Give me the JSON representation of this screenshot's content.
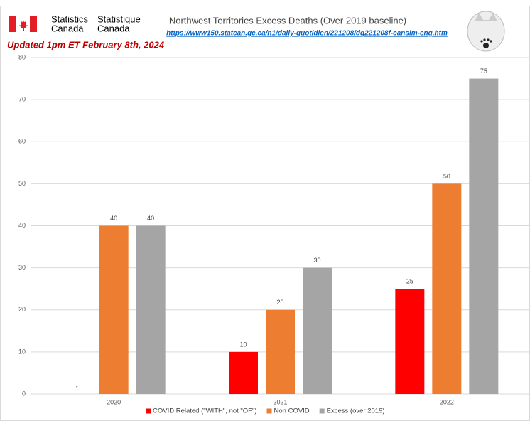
{
  "header": {
    "agency_en": [
      "Statistics",
      "Canada"
    ],
    "agency_fr": [
      "Statistique",
      "Canada"
    ]
  },
  "chart_data": {
    "type": "bar",
    "title": "Northwest Territories Excess Deaths (Over 2019 baseline)",
    "subtitle": "https://www150.statcan.gc.ca/n1/daily-quotidien/221208/dq221208f-cansim-eng.htm",
    "annotation": "Updated 1pm ET February 8th, 2024",
    "categories": [
      "2020",
      "2021",
      "2022"
    ],
    "series": [
      {
        "name": "COVID Related (\"WITH\", not \"OF\")",
        "color": "#ff0000",
        "values": [
          0,
          10,
          25
        ],
        "value_labels": [
          "-",
          "10",
          "25"
        ]
      },
      {
        "name": "Non COVID",
        "color": "#ed7d31",
        "values": [
          40,
          20,
          50
        ]
      },
      {
        "name": "Excess (over 2019)",
        "color": "#a5a5a5",
        "values": [
          40,
          30,
          75
        ]
      }
    ],
    "ylim": [
      0,
      80
    ],
    "yticks": [
      0,
      10,
      20,
      30,
      40,
      50,
      60,
      70,
      80
    ],
    "grid": true,
    "legend": "bottom"
  }
}
